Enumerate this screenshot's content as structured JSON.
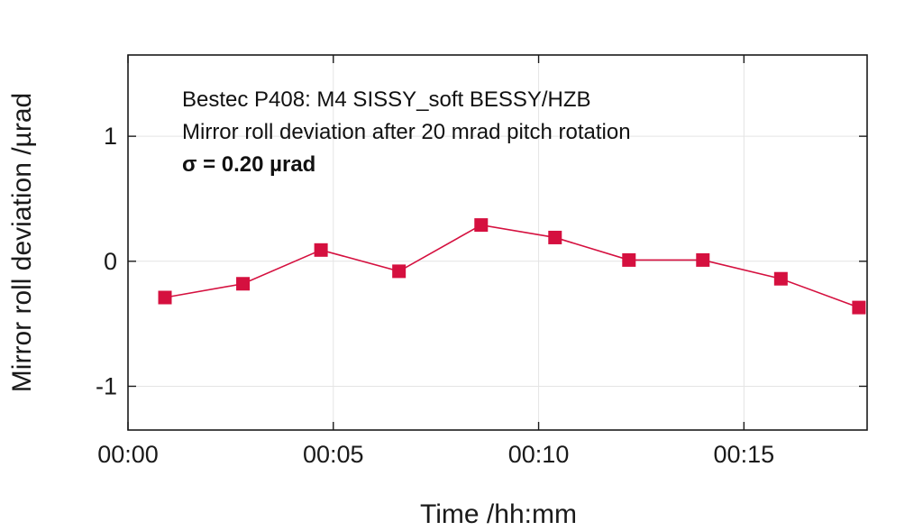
{
  "chart_data": {
    "type": "line",
    "xlabel": "Time /hh:mm",
    "ylabel": "Mirror roll deviation /µrad",
    "xlim": [
      0,
      18.0
    ],
    "ylim": [
      -1.35,
      1.65
    ],
    "x_ticks": [
      {
        "value": 0,
        "label": "00:00"
      },
      {
        "value": 5,
        "label": "00:05"
      },
      {
        "value": 10,
        "label": "00:10"
      },
      {
        "value": 15,
        "label": "00:15"
      }
    ],
    "y_ticks": [
      {
        "value": -1,
        "label": "-1"
      },
      {
        "value": 0,
        "label": "0"
      },
      {
        "value": 1,
        "label": "1"
      }
    ],
    "grid": true,
    "series": [
      {
        "color": "#d5103f",
        "marker": "square",
        "x": [
          0.9,
          2.8,
          4.7,
          6.6,
          8.6,
          10.4,
          12.2,
          14.0,
          15.9,
          17.8
        ],
        "y": [
          -0.29,
          -0.18,
          0.09,
          -0.08,
          0.29,
          0.19,
          0.01,
          0.01,
          -0.14,
          -0.37
        ]
      }
    ],
    "annotations": [
      {
        "text": "Bestec P408: M4 SISSY_soft BESSY/HZB",
        "bold": false
      },
      {
        "text": "Mirror roll deviation after 20 mrad pitch rotation",
        "bold": false
      },
      {
        "text": "σ = 0.20 µrad",
        "bold": true
      }
    ]
  }
}
